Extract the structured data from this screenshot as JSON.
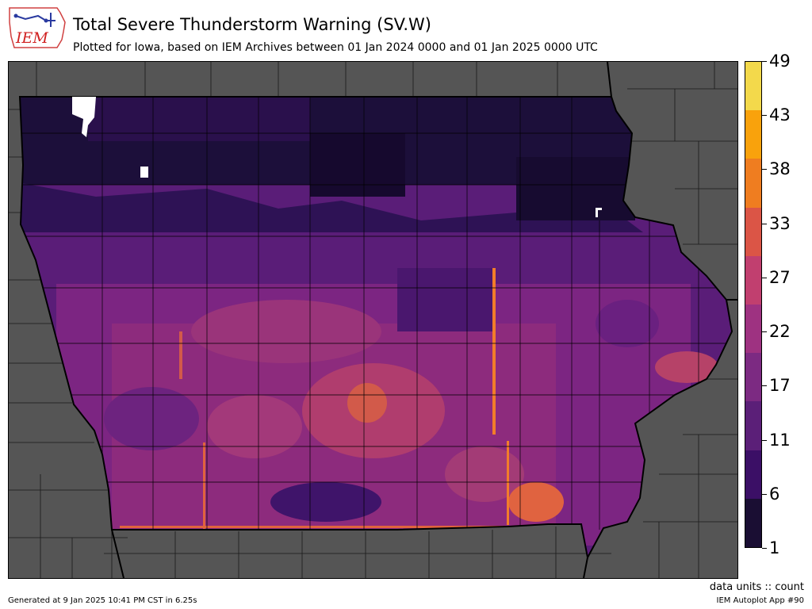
{
  "logo_text": "IEM",
  "title": "Total Severe Thunderstorm Warning (SV.W)",
  "subtitle": "Plotted for Iowa, based on IEM Archives  between 01 Jan 2024 0000 and 01 Jan 2025 0000 UTC",
  "colorbar": {
    "ticks": [
      "49",
      "43",
      "38",
      "33",
      "27",
      "22",
      "17",
      "11",
      "6",
      "1"
    ],
    "colors": [
      "#1a0e33",
      "#3b0f66",
      "#5b1f78",
      "#7c2a82",
      "#9e3281",
      "#c13f6f",
      "#db5546",
      "#ef7d20",
      "#f9a20c",
      "#f3d94b"
    ]
  },
  "units_label": "data units :: count",
  "generated": "Generated at 9 Jan 2025 10:41 PM CST in 6.25s",
  "app": "IEM Autoplot App #90"
}
